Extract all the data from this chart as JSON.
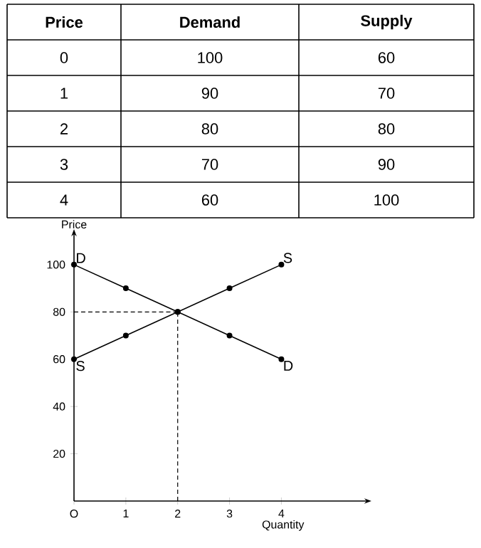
{
  "chart_data": [
    {
      "type": "heatmap",
      "ylabel": "Price",
      "categories": [
        "Demand",
        "Supply"
      ],
      "y_categories": [
        "0",
        "1",
        "2",
        "3",
        "4"
      ],
      "cells": [
        [
          100,
          60
        ],
        [
          90,
          70
        ],
        [
          80,
          80
        ],
        [
          70,
          90
        ],
        [
          60,
          100
        ]
      ],
      "data_labels": true
    },
    {
      "type": "line",
      "xlabel": "Quantity",
      "ylabel": "Price",
      "x": [
        0,
        1,
        2,
        3,
        4
      ],
      "series": [
        {
          "name": "D",
          "color": "#000000",
          "values": [
            100,
            90,
            80,
            70,
            60
          ]
        },
        {
          "name": "S",
          "color": "#000000",
          "values": [
            60,
            70,
            80,
            90,
            100
          ]
        }
      ],
      "xlim": [
        0,
        5.6
      ],
      "ylim": [
        0,
        112
      ],
      "xticks": [
        {
          "value": 0,
          "label": "O"
        },
        1,
        2,
        3,
        4
      ],
      "yticks": [
        20,
        40,
        60,
        80,
        100
      ],
      "ref_lines": [
        {
          "axis": "x",
          "value": 2,
          "line_style": "dashed"
        },
        {
          "axis": "y",
          "value": 80,
          "line_style": "dashed"
        }
      ],
      "annotations": [
        {
          "text": "D",
          "x": 0,
          "y": 100
        },
        {
          "text": "S",
          "x": 0,
          "y": 60
        }
      ],
      "marker": "circle",
      "line_style": "solid"
    }
  ]
}
